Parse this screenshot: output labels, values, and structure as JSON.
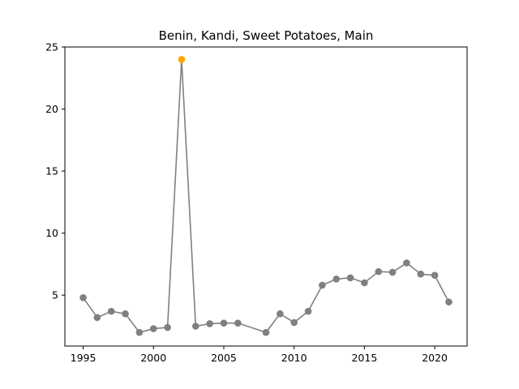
{
  "chart_data": {
    "type": "line",
    "title": "Benin, Kandi, Sweet Potatoes, Main",
    "xlabel": "",
    "ylabel": "",
    "xlim": [
      1993.7,
      2022.3
    ],
    "ylim": [
      0.9,
      25.0
    ],
    "xticks": [
      1995,
      2000,
      2005,
      2010,
      2015,
      2020
    ],
    "yticks": [
      5,
      10,
      15,
      20,
      25
    ],
    "grid": false,
    "series": [
      {
        "x": [
          1995,
          1996,
          1997,
          1998,
          1999,
          2000,
          2001,
          2002,
          2003,
          2004,
          2005,
          2006,
          2008,
          2009,
          2010,
          2011,
          2012,
          2013,
          2014,
          2015,
          2016,
          2017,
          2018,
          2019,
          2020,
          2021
        ],
        "y": [
          4.8,
          3.2,
          3.7,
          3.5,
          2.0,
          2.3,
          2.4,
          24.0,
          2.5,
          2.7,
          2.75,
          2.75,
          2.0,
          3.5,
          2.8,
          3.7,
          5.8,
          6.3,
          6.4,
          6.0,
          6.9,
          6.85,
          7.6,
          6.7,
          6.6,
          4.45
        ],
        "line_color": "#808080",
        "marker_color": "#808080",
        "highlight": {
          "x": 2002,
          "y": 24.0,
          "color": "#ffa500"
        }
      }
    ]
  }
}
